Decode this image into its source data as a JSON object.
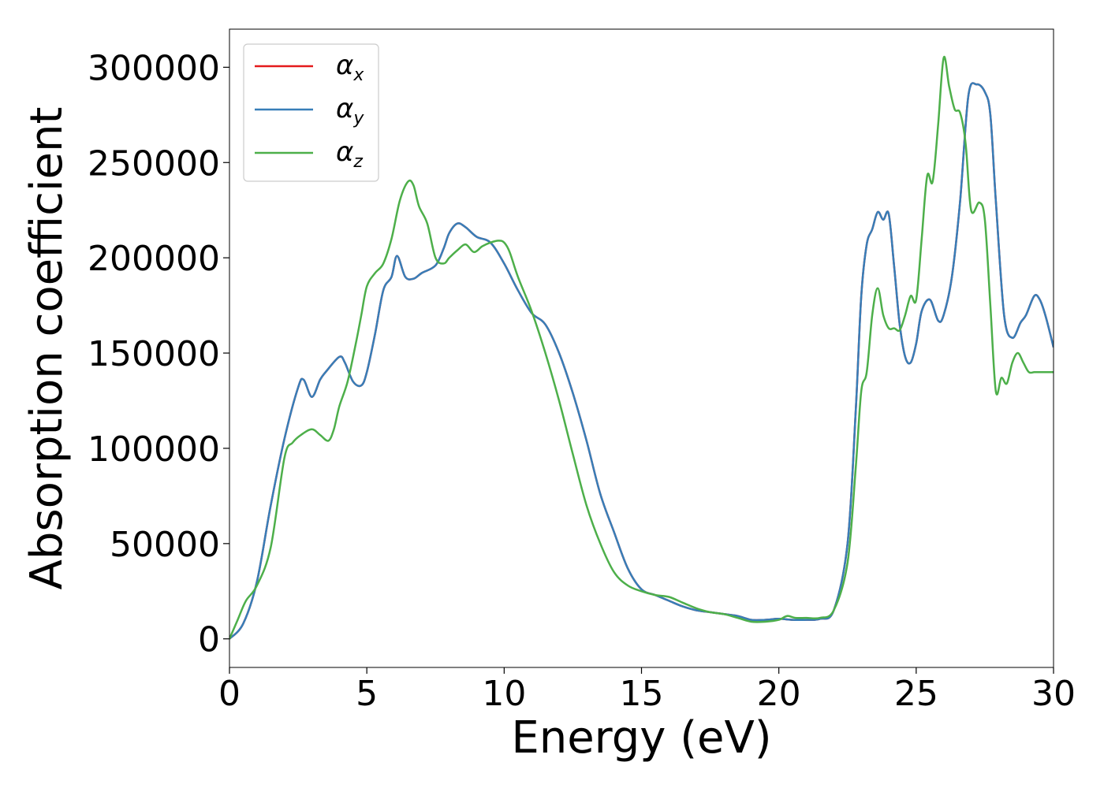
{
  "chart_data": {
    "type": "line",
    "xlabel": "Energy (eV)",
    "ylabel": "Absorption coefficient",
    "xlim": [
      0,
      30
    ],
    "ylim": [
      -15000,
      320000
    ],
    "xticks": [
      0,
      5,
      10,
      15,
      20,
      25,
      30
    ],
    "yticks": [
      0,
      50000,
      100000,
      150000,
      200000,
      250000,
      300000
    ],
    "grid": false,
    "legend_position": "top-left",
    "series": [
      {
        "name": "α_x",
        "label_main": "α",
        "label_sub": "x",
        "color": "#e41a1c",
        "x": [
          0,
          0.5,
          1.0,
          1.5,
          2.0,
          2.5,
          2.7,
          3.0,
          3.3,
          3.5,
          4.0,
          4.2,
          4.5,
          4.8,
          5.0,
          5.3,
          5.6,
          5.9,
          6.1,
          6.4,
          6.7,
          7.0,
          7.5,
          7.8,
          8.0,
          8.3,
          8.6,
          9.0,
          9.5,
          10.0,
          10.5,
          11.0,
          11.5,
          12.0,
          12.5,
          13.0,
          13.5,
          14.0,
          14.5,
          15.0,
          15.5,
          16.0,
          16.5,
          17.0,
          17.5,
          18.0,
          18.5,
          19.0,
          19.5,
          20.0,
          20.5,
          21.0,
          21.5,
          22.0,
          22.5,
          22.8,
          23.0,
          23.2,
          23.4,
          23.6,
          23.8,
          24.0,
          24.2,
          24.4,
          24.6,
          24.8,
          25.0,
          25.2,
          25.5,
          25.8,
          26.0,
          26.3,
          26.6,
          26.9,
          27.2,
          27.5,
          27.7,
          27.9,
          28.2,
          28.5,
          28.8,
          29.0,
          29.3,
          29.5,
          29.7,
          30.0
        ],
        "y": [
          0,
          8000,
          30000,
          70000,
          105000,
          132000,
          136000,
          127000,
          136000,
          140000,
          148000,
          145000,
          135000,
          133000,
          140000,
          160000,
          183000,
          190000,
          201000,
          190000,
          189000,
          192000,
          196000,
          205000,
          213000,
          218000,
          216000,
          211000,
          208000,
          197000,
          183000,
          171000,
          165000,
          150000,
          129000,
          104000,
          76000,
          56000,
          37000,
          26000,
          23000,
          20000,
          17000,
          15000,
          14000,
          13000,
          12000,
          10000,
          10000,
          10500,
          10000,
          10000,
          10500,
          15000,
          50000,
          120000,
          180000,
          207000,
          215000,
          224000,
          220000,
          223000,
          195000,
          165000,
          148000,
          145000,
          155000,
          172000,
          178000,
          167000,
          170000,
          190000,
          230000,
          285000,
          291000,
          287000,
          275000,
          230000,
          170000,
          158000,
          166000,
          170000,
          180000,
          178000,
          170000,
          153000
        ]
      },
      {
        "name": "α_y",
        "label_main": "α",
        "label_sub": "y",
        "color": "#377eb8",
        "x": [
          0,
          0.5,
          1.0,
          1.5,
          2.0,
          2.5,
          2.7,
          3.0,
          3.3,
          3.5,
          4.0,
          4.2,
          4.5,
          4.8,
          5.0,
          5.3,
          5.6,
          5.9,
          6.1,
          6.4,
          6.7,
          7.0,
          7.5,
          7.8,
          8.0,
          8.3,
          8.6,
          9.0,
          9.5,
          10.0,
          10.5,
          11.0,
          11.5,
          12.0,
          12.5,
          13.0,
          13.5,
          14.0,
          14.5,
          15.0,
          15.5,
          16.0,
          16.5,
          17.0,
          17.5,
          18.0,
          18.5,
          19.0,
          19.5,
          20.0,
          20.5,
          21.0,
          21.5,
          22.0,
          22.5,
          22.8,
          23.0,
          23.2,
          23.4,
          23.6,
          23.8,
          24.0,
          24.2,
          24.4,
          24.6,
          24.8,
          25.0,
          25.2,
          25.5,
          25.8,
          26.0,
          26.3,
          26.6,
          26.9,
          27.2,
          27.5,
          27.7,
          27.9,
          28.2,
          28.5,
          28.8,
          29.0,
          29.3,
          29.5,
          29.7,
          30.0
        ],
        "y": [
          0,
          8000,
          30000,
          70000,
          105000,
          132000,
          136000,
          127000,
          136000,
          140000,
          148000,
          145000,
          135000,
          133000,
          140000,
          160000,
          183000,
          190000,
          201000,
          190000,
          189000,
          192000,
          196000,
          205000,
          213000,
          218000,
          216000,
          211000,
          208000,
          197000,
          183000,
          171000,
          165000,
          150000,
          129000,
          104000,
          76000,
          56000,
          37000,
          26000,
          23000,
          20000,
          17000,
          15000,
          14000,
          13000,
          12000,
          10000,
          10000,
          10500,
          10000,
          10000,
          10500,
          15000,
          50000,
          120000,
          180000,
          207000,
          215000,
          224000,
          220000,
          223000,
          195000,
          165000,
          148000,
          145000,
          155000,
          172000,
          178000,
          167000,
          170000,
          190000,
          230000,
          285000,
          291000,
          287000,
          275000,
          230000,
          170000,
          158000,
          166000,
          170000,
          180000,
          178000,
          170000,
          153000
        ]
      },
      {
        "name": "α_z",
        "label_main": "α",
        "label_sub": "z",
        "color": "#4daf4a",
        "x": [
          0,
          0.3,
          0.6,
          1.0,
          1.5,
          2.0,
          2.3,
          2.6,
          3.0,
          3.3,
          3.6,
          3.8,
          4.0,
          4.3,
          4.6,
          4.8,
          5.0,
          5.3,
          5.6,
          5.9,
          6.2,
          6.5,
          6.7,
          6.9,
          7.2,
          7.5,
          7.8,
          8.0,
          8.3,
          8.6,
          8.9,
          9.2,
          9.5,
          9.8,
          10.0,
          10.2,
          10.5,
          11.0,
          11.5,
          12.0,
          12.5,
          13.0,
          13.5,
          14.0,
          14.5,
          15.0,
          15.5,
          16.0,
          16.5,
          17.0,
          17.5,
          18.0,
          18.5,
          19.0,
          19.5,
          20.0,
          20.3,
          20.6,
          21.0,
          21.5,
          22.0,
          22.5,
          22.8,
          23.0,
          23.2,
          23.4,
          23.6,
          23.8,
          24.0,
          24.2,
          24.4,
          24.6,
          24.8,
          25.0,
          25.2,
          25.4,
          25.6,
          25.8,
          26.0,
          26.2,
          26.4,
          26.6,
          26.8,
          27.0,
          27.3,
          27.5,
          27.7,
          27.9,
          28.1,
          28.3,
          28.5,
          28.7,
          28.9,
          29.1,
          29.3,
          29.5,
          29.7,
          30.0
        ],
        "y": [
          0,
          10000,
          20000,
          28000,
          48000,
          95000,
          103000,
          107000,
          110000,
          107000,
          104000,
          110000,
          122000,
          135000,
          155000,
          170000,
          185000,
          192000,
          197000,
          210000,
          230000,
          240000,
          238000,
          227000,
          218000,
          200000,
          197000,
          200000,
          204000,
          207000,
          203000,
          206000,
          208000,
          209000,
          208000,
          203000,
          190000,
          172000,
          150000,
          125000,
          97000,
          70000,
          50000,
          35000,
          28000,
          25000,
          23000,
          22000,
          19000,
          16000,
          14000,
          13000,
          11000,
          9000,
          9000,
          10000,
          12000,
          11000,
          11000,
          11000,
          15000,
          40000,
          90000,
          130000,
          140000,
          170000,
          184000,
          170000,
          163000,
          163000,
          162000,
          170000,
          180000,
          178000,
          210000,
          243000,
          240000,
          270000,
          305000,
          290000,
          278000,
          276000,
          260000,
          225000,
          229000,
          220000,
          175000,
          130000,
          137000,
          134000,
          145000,
          150000,
          145000,
          140000,
          140000,
          140000,
          140000,
          140000
        ]
      }
    ]
  }
}
